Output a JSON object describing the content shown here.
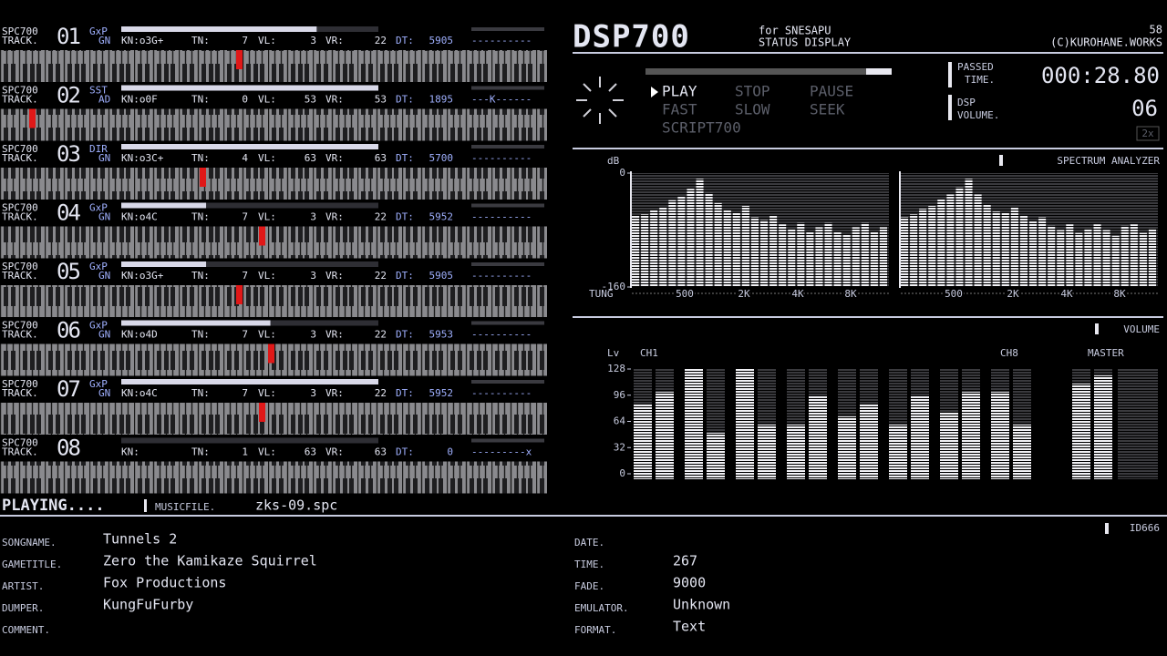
{
  "tracks": [
    {
      "chip": "SPC700",
      "track_label": "TRACK.",
      "number": "01",
      "mode": "GxP",
      "env": "GN",
      "kn": "KN:o3G+",
      "tn_label": "TN:",
      "tn": 7,
      "vl_label": "VL:",
      "vl": 3,
      "vr_label": "VR:",
      "vr": 22,
      "dt_label": "DT:",
      "dt": 5905,
      "flags": "----------",
      "level": 76
    },
    {
      "chip": "SPC700",
      "track_label": "TRACK.",
      "number": "02",
      "mode": "SST",
      "env": "AD",
      "kn": "KN:o0F",
      "tn_label": "TN:",
      "tn": 0,
      "vl_label": "VL:",
      "vl": 53,
      "vr_label": "VR:",
      "vr": 53,
      "dt_label": "DT:",
      "dt": 1895,
      "flags": "---K------",
      "level": 100
    },
    {
      "chip": "SPC700",
      "track_label": "TRACK.",
      "number": "03",
      "mode": "DIR",
      "env": "GN",
      "kn": "KN:o3C+",
      "tn_label": "TN:",
      "tn": 4,
      "vl_label": "VL:",
      "vl": 63,
      "vr_label": "VR:",
      "vr": 63,
      "dt_label": "DT:",
      "dt": 5700,
      "flags": "----------",
      "level": 100
    },
    {
      "chip": "SPC700",
      "track_label": "TRACK.",
      "number": "04",
      "mode": "GxP",
      "env": "GN",
      "kn": "KN:o4C",
      "tn_label": "TN:",
      "tn": 7,
      "vl_label": "VL:",
      "vl": 3,
      "vr_label": "VR:",
      "vr": 22,
      "dt_label": "DT:",
      "dt": 5952,
      "flags": "----------",
      "level": 33
    },
    {
      "chip": "SPC700",
      "track_label": "TRACK.",
      "number": "05",
      "mode": "GxP",
      "env": "GN",
      "kn": "KN:o3G+",
      "tn_label": "TN:",
      "tn": 7,
      "vl_label": "VL:",
      "vl": 3,
      "vr_label": "VR:",
      "vr": 22,
      "dt_label": "DT:",
      "dt": 5905,
      "flags": "----------",
      "level": 33
    },
    {
      "chip": "SPC700",
      "track_label": "TRACK.",
      "number": "06",
      "mode": "GxP",
      "env": "GN",
      "kn": "KN:o4D",
      "tn_label": "TN:",
      "tn": 7,
      "vl_label": "VL:",
      "vl": 3,
      "vr_label": "VR:",
      "vr": 22,
      "dt_label": "DT:",
      "dt": 5953,
      "flags": "----------",
      "level": 58
    },
    {
      "chip": "SPC700",
      "track_label": "TRACK.",
      "number": "07",
      "mode": "GxP",
      "env": "GN",
      "kn": "KN:o4C",
      "tn_label": "TN:",
      "tn": 7,
      "vl_label": "VL:",
      "vl": 3,
      "vr_label": "VR:",
      "vr": 22,
      "dt_label": "DT:",
      "dt": 5952,
      "flags": "----------",
      "level": 100
    },
    {
      "chip": "SPC700",
      "track_label": "TRACK.",
      "number": "08",
      "kn": "KN:",
      "tn_label": "TN:",
      "tn": 1,
      "vl_label": "VL:",
      "vl": 63,
      "vr_label": "VR:",
      "vr": 63,
      "dt_label": "DT:",
      "dt": 0,
      "flags": "---------x",
      "level": 0
    }
  ],
  "header": {
    "title": "DSP700",
    "for": "for SNESAPU",
    "subtitle": "STATUS DISPLAY",
    "frame": "58",
    "copyright": "(C)KUROHANE.WORKS"
  },
  "controls": {
    "play": "PLAY",
    "stop": "STOP",
    "pause": "PAUSE",
    "fast": "FAST",
    "slow": "SLOW",
    "seek": "SEEK",
    "script": "SCRIPT700"
  },
  "status": {
    "passed": "PASSED",
    "time_label": "TIME.",
    "time": "000:28.80",
    "dsp": "DSP",
    "volume_label": "VOLUME.",
    "volume": "06",
    "speed": "2x"
  },
  "spectrum": {
    "title": "SPECTRUM ANALYZER",
    "axis_label": "dB",
    "x_label": "TUNG",
    "ylim": [
      -160,
      0
    ],
    "yticks": [
      0,
      -160
    ],
    "freq_labels": [
      "500",
      "2K",
      "4K",
      "8K"
    ],
    "left": [
      -60,
      -58,
      -52,
      -48,
      -38,
      -32,
      -22,
      -8,
      -28,
      -42,
      -52,
      -56,
      -46,
      -62,
      -66,
      -60,
      -72,
      -78,
      -70,
      -82,
      -76,
      -70,
      -82,
      -86,
      -76,
      -70,
      -82,
      -76
    ],
    "right": [
      -62,
      -58,
      -50,
      -46,
      -36,
      -30,
      -20,
      -8,
      -30,
      -44,
      -54,
      -56,
      -48,
      -60,
      -68,
      -62,
      -74,
      -80,
      -72,
      -84,
      -78,
      -72,
      -80,
      -88,
      -74,
      -72,
      -84,
      -78
    ]
  },
  "volume": {
    "title": "VOLUME",
    "axis_label": "Lv",
    "first_label": "CH1",
    "last_label": "CH8",
    "master_label": "MASTER",
    "ylim": [
      0,
      128
    ],
    "yticks": [
      128,
      96,
      64,
      32,
      0
    ],
    "channels": [
      [
        85,
        100
      ],
      [
        128,
        50
      ],
      [
        128,
        60
      ],
      [
        60,
        95
      ],
      [
        70,
        85
      ],
      [
        60,
        95
      ],
      [
        75,
        100
      ],
      [
        100,
        60
      ]
    ],
    "master": [
      110,
      120
    ]
  },
  "info": {
    "playing": "PLAYING....",
    "musicfile_label": "MUSICFILE.",
    "musicfile": "zks-09.spc",
    "tag": "ID666",
    "songname_label": "SONGNAME.",
    "songname": "Tunnels 2",
    "gametitle_label": "GAMETITLE.",
    "gametitle": "Zero the Kamikaze Squirrel",
    "artist_label": "ARTIST.",
    "artist": "Fox Productions",
    "dumper_label": "DUMPER.",
    "dumper": "KungFuFurby",
    "comment_label": "COMMENT.",
    "date_label": "DATE.",
    "time_label": "TIME.",
    "time": 267,
    "fade_label": "FADE.",
    "fade": 9000,
    "emulator_label": "EMULATOR.",
    "emulator": "Unknown",
    "format_label": "FORMAT.",
    "format": "Text"
  }
}
